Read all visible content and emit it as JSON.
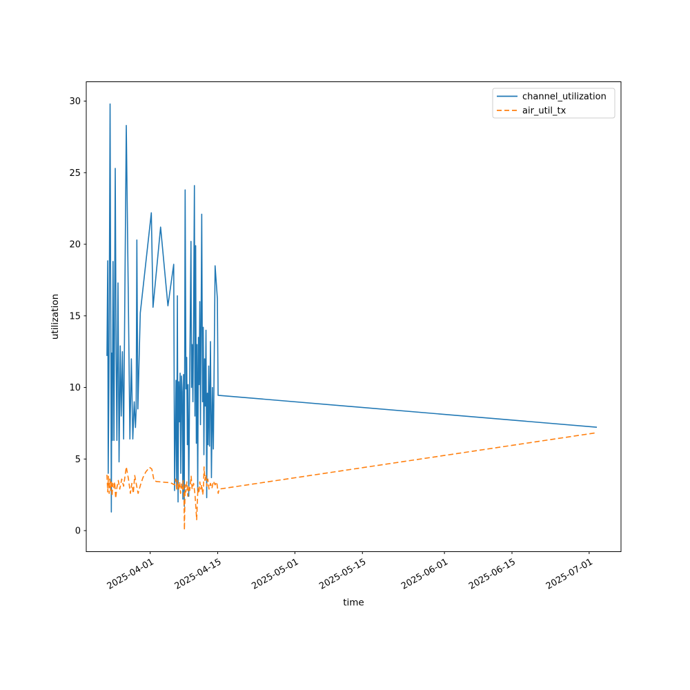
{
  "chart_data": {
    "type": "line",
    "title": "",
    "xlabel": "time",
    "ylabel": "utilization",
    "x_epoch_date": "2025-04-01",
    "x_unit": "days since 2025-04-01",
    "xlim_days": [
      -13.25,
      97.6
    ],
    "ylim": [
      -1.47,
      31.35
    ],
    "yticks": [
      0,
      5,
      10,
      15,
      20,
      25,
      30
    ],
    "x_ticks": [
      {
        "days": 0,
        "label": "2025-04-01"
      },
      {
        "days": 14,
        "label": "2025-04-15"
      },
      {
        "days": 30,
        "label": "2025-05-01"
      },
      {
        "days": 44,
        "label": "2025-05-15"
      },
      {
        "days": 61,
        "label": "2025-06-01"
      },
      {
        "days": 75,
        "label": "2025-06-15"
      },
      {
        "days": 91,
        "label": "2025-07-01"
      }
    ],
    "grid": false,
    "legend_position": "upper right",
    "series": [
      {
        "name": "channel_utilization",
        "color": "#1f77b4",
        "style": "solid",
        "points": [
          [
            -8.96,
            12.2
          ],
          [
            -8.8,
            18.85
          ],
          [
            -8.7,
            4.0
          ],
          [
            -8.55,
            10.2
          ],
          [
            -8.31,
            29.8
          ],
          [
            -8.15,
            12.3
          ],
          [
            -8.05,
            1.3
          ],
          [
            -7.95,
            12.4
          ],
          [
            -7.85,
            6.3
          ],
          [
            -7.7,
            18.8
          ],
          [
            -7.5,
            6.3
          ],
          [
            -7.24,
            25.3
          ],
          [
            -7.05,
            12.0
          ],
          [
            -6.9,
            6.3
          ],
          [
            -6.67,
            17.3
          ],
          [
            -6.45,
            4.8
          ],
          [
            -6.2,
            12.9
          ],
          [
            -6.0,
            8.0
          ],
          [
            -5.75,
            12.5
          ],
          [
            -5.5,
            6.4
          ],
          [
            -4.95,
            28.3
          ],
          [
            -4.5,
            15.4
          ],
          [
            -4.2,
            6.4
          ],
          [
            -3.9,
            12.0
          ],
          [
            -3.6,
            6.4
          ],
          [
            -3.3,
            9.0
          ],
          [
            -3.05,
            7.2
          ],
          [
            -2.9,
            8.5
          ],
          [
            -2.76,
            20.3
          ],
          [
            -2.55,
            8.5
          ],
          [
            -2.05,
            15.2
          ],
          [
            0.24,
            22.2
          ],
          [
            0.59,
            15.6
          ],
          [
            2.16,
            21.2
          ],
          [
            3.68,
            15.7
          ],
          [
            4.88,
            18.6
          ],
          [
            5.06,
            2.8
          ],
          [
            5.35,
            10.5
          ],
          [
            5.49,
            3.0
          ],
          [
            5.64,
            16.4
          ],
          [
            5.78,
            2.0
          ],
          [
            5.92,
            10.4
          ],
          [
            6.07,
            7.6
          ],
          [
            6.21,
            11.0
          ],
          [
            6.35,
            4.0
          ],
          [
            6.49,
            10.8
          ],
          [
            6.64,
            9.7
          ],
          [
            6.78,
            2.2
          ],
          [
            6.92,
            10.9
          ],
          [
            7.07,
            1.7
          ],
          [
            7.25,
            23.8
          ],
          [
            7.42,
            9.9
          ],
          [
            7.57,
            12.1
          ],
          [
            7.71,
            6.0
          ],
          [
            7.85,
            10.2
          ],
          [
            8.0,
            2.4
          ],
          [
            8.21,
            11.3
          ],
          [
            8.46,
            20.2
          ],
          [
            8.57,
            10.0
          ],
          [
            8.71,
            13.0
          ],
          [
            8.86,
            9.0
          ],
          [
            9.0,
            15.0
          ],
          [
            9.17,
            24.1
          ],
          [
            9.28,
            8.0
          ],
          [
            9.43,
            19.9
          ],
          [
            9.57,
            6.1
          ],
          [
            9.71,
            13.0
          ],
          [
            9.86,
            2.8
          ],
          [
            10.0,
            13.5
          ],
          [
            10.14,
            10.2
          ],
          [
            10.29,
            16.0
          ],
          [
            10.43,
            7.4
          ],
          [
            10.69,
            22.1
          ],
          [
            10.86,
            9.0
          ],
          [
            11.0,
            14.2
          ],
          [
            11.14,
            5.3
          ],
          [
            11.29,
            12.0
          ],
          [
            11.43,
            8.7
          ],
          [
            11.57,
            14.0
          ],
          [
            11.72,
            2.3
          ],
          [
            11.86,
            9.6
          ],
          [
            12.0,
            6.0
          ],
          [
            12.14,
            11.5
          ],
          [
            12.3,
            5.9
          ],
          [
            12.5,
            13.2
          ],
          [
            12.7,
            3.7
          ],
          [
            12.9,
            10.0
          ],
          [
            13.1,
            5.7
          ],
          [
            13.46,
            18.5
          ],
          [
            13.93,
            16.2
          ],
          [
            14.08,
            9.45
          ],
          [
            92.6,
            7.22
          ]
        ]
      },
      {
        "name": "air_util_tx",
        "color": "#ff7f0e",
        "style": "dashed",
        "points": [
          [
            -8.96,
            3.9
          ],
          [
            -8.8,
            2.7
          ],
          [
            -8.65,
            3.8
          ],
          [
            -8.5,
            2.6
          ],
          [
            -8.35,
            3.6
          ],
          [
            -8.2,
            2.8
          ],
          [
            -8.05,
            3.5
          ],
          [
            -7.9,
            2.4
          ],
          [
            -7.75,
            3.3
          ],
          [
            -7.55,
            3.0
          ],
          [
            -7.35,
            3.4
          ],
          [
            -7.15,
            2.25
          ],
          [
            -6.9,
            3.0
          ],
          [
            -6.6,
            3.5
          ],
          [
            -6.3,
            2.9
          ],
          [
            -5.9,
            3.6
          ],
          [
            -5.5,
            3.1
          ],
          [
            -4.95,
            4.45
          ],
          [
            -4.5,
            3.6
          ],
          [
            -4.1,
            2.6
          ],
          [
            -3.8,
            3.3
          ],
          [
            -3.5,
            2.6
          ],
          [
            -3.2,
            3.85
          ],
          [
            -2.9,
            3.3
          ],
          [
            -2.5,
            2.6
          ],
          [
            -2.0,
            3.2
          ],
          [
            -1.5,
            3.7
          ],
          [
            -0.9,
            4.1
          ],
          [
            -0.13,
            4.42
          ],
          [
            0.34,
            4.3
          ],
          [
            0.8,
            3.5
          ],
          [
            1.3,
            3.43
          ],
          [
            2.2,
            3.4
          ],
          [
            3.2,
            3.37
          ],
          [
            4.16,
            3.35
          ],
          [
            5.06,
            3.2
          ],
          [
            5.3,
            3.6
          ],
          [
            5.5,
            2.9
          ],
          [
            5.7,
            3.5
          ],
          [
            5.9,
            2.8
          ],
          [
            6.1,
            3.4
          ],
          [
            6.3,
            2.6
          ],
          [
            6.5,
            3.3
          ],
          [
            6.7,
            2.9
          ],
          [
            6.85,
            3.5
          ],
          [
            7.0,
            2.5
          ],
          [
            7.1,
            0.05
          ],
          [
            7.25,
            3.2
          ],
          [
            7.4,
            2.7
          ],
          [
            7.6,
            3.4
          ],
          [
            7.8,
            2.4
          ],
          [
            8.0,
            3.1
          ],
          [
            8.2,
            2.8
          ],
          [
            8.5,
            3.8
          ],
          [
            8.7,
            2.9
          ],
          [
            9.0,
            3.3
          ],
          [
            9.3,
            2.5
          ],
          [
            9.64,
            0.76
          ],
          [
            9.9,
            3.0
          ],
          [
            10.1,
            2.6
          ],
          [
            10.3,
            3.4
          ],
          [
            10.5,
            2.9
          ],
          [
            10.7,
            3.2
          ],
          [
            10.9,
            2.5
          ],
          [
            11.05,
            3.0
          ],
          [
            11.17,
            4.45
          ],
          [
            11.35,
            3.5
          ],
          [
            11.55,
            3.9
          ],
          [
            11.75,
            3.1
          ],
          [
            11.95,
            3.6
          ],
          [
            12.2,
            2.9
          ],
          [
            12.5,
            3.3
          ],
          [
            12.8,
            2.95
          ],
          [
            13.1,
            3.45
          ],
          [
            13.46,
            3.2
          ],
          [
            13.8,
            3.4
          ],
          [
            14.1,
            2.6
          ],
          [
            14.3,
            2.9
          ],
          [
            92.6,
            6.84
          ]
        ]
      }
    ]
  }
}
